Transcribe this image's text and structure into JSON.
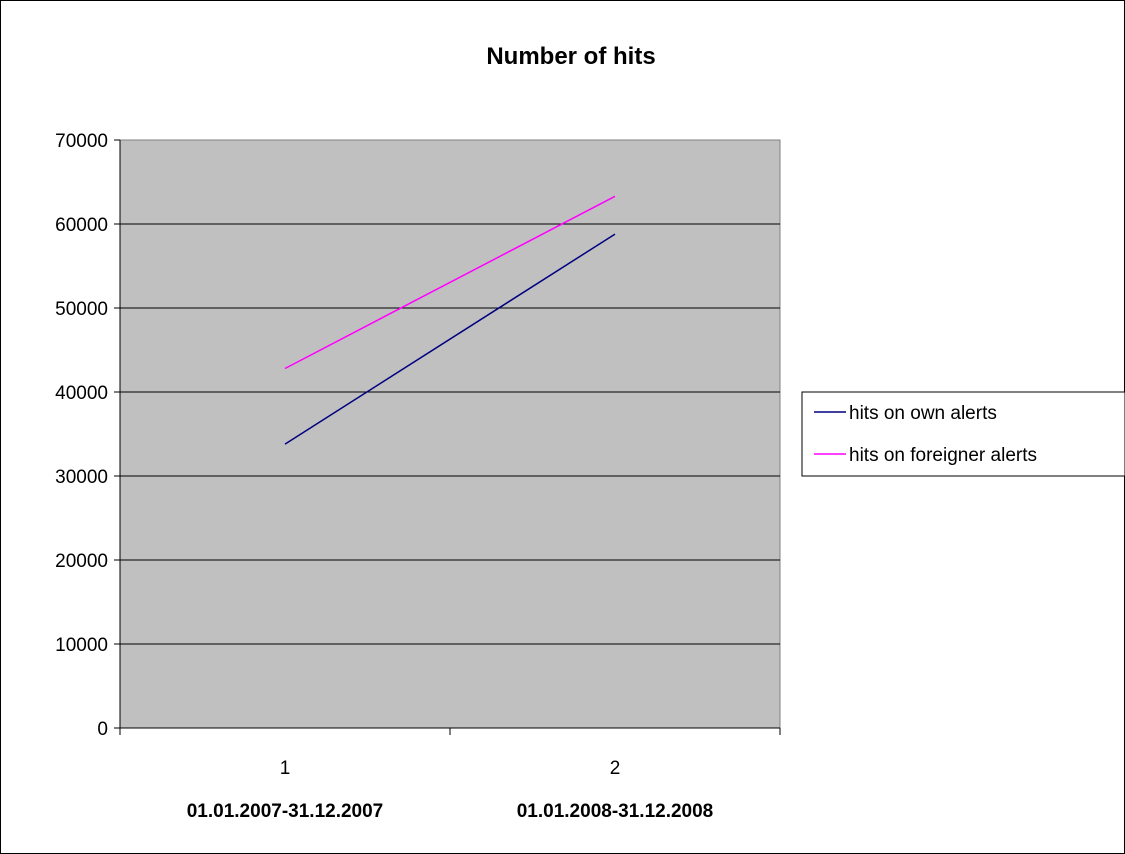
{
  "chart_data": {
    "type": "line",
    "title": "Number of hits",
    "xlabel": "",
    "ylabel": "",
    "categories": [
      "1",
      "2"
    ],
    "category_sublabels": [
      "01.01.2007-31.12.2007",
      "01.01.2008-31.12.2008"
    ],
    "ylim": [
      0,
      70000
    ],
    "yticks": [
      0,
      10000,
      20000,
      30000,
      40000,
      50000,
      60000,
      70000
    ],
    "grid": true,
    "legend_position": "right",
    "plot_background": "#c0c0c0",
    "series": [
      {
        "name": "hits on own alerts",
        "values": [
          33800,
          58800
        ],
        "color": "#000080"
      },
      {
        "name": "hits on foreigner alerts",
        "values": [
          42800,
          63300
        ],
        "color": "#ff00ff"
      }
    ]
  }
}
